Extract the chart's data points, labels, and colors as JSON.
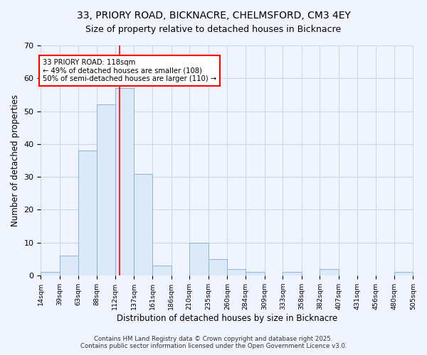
{
  "title1": "33, PRIORY ROAD, BICKNACRE, CHELMSFORD, CM3 4EY",
  "title2": "Size of property relative to detached houses in Bicknacre",
  "xlabel": "Distribution of detached houses by size in Bicknacre",
  "ylabel": "Number of detached properties",
  "bin_edges": [
    14,
    39,
    63,
    88,
    112,
    137,
    161,
    186,
    210,
    235,
    260,
    284,
    309,
    333,
    358,
    382,
    407,
    431,
    456,
    480,
    505
  ],
  "bar_heights": [
    1,
    6,
    38,
    52,
    57,
    31,
    3,
    0,
    10,
    5,
    2,
    1,
    0,
    1,
    0,
    2,
    0,
    0,
    0,
    1
  ],
  "bar_color": "#dce9f8",
  "bar_edge_color": "#8ab4d8",
  "red_line_x": 118,
  "annotation_text": "33 PRIORY ROAD: 118sqm\n← 49% of detached houses are smaller (108)\n50% of semi-detached houses are larger (110) →",
  "annotation_box_color": "white",
  "annotation_edge_color": "red",
  "ylim": [
    0,
    70
  ],
  "yticks": [
    0,
    10,
    20,
    30,
    40,
    50,
    60,
    70
  ],
  "footer1": "Contains HM Land Registry data © Crown copyright and database right 2025.",
  "footer2": "Contains public sector information licensed under the Open Government Licence v3.0.",
  "bg_color": "#f0f4ff",
  "grid_color": "#c8d8ee"
}
